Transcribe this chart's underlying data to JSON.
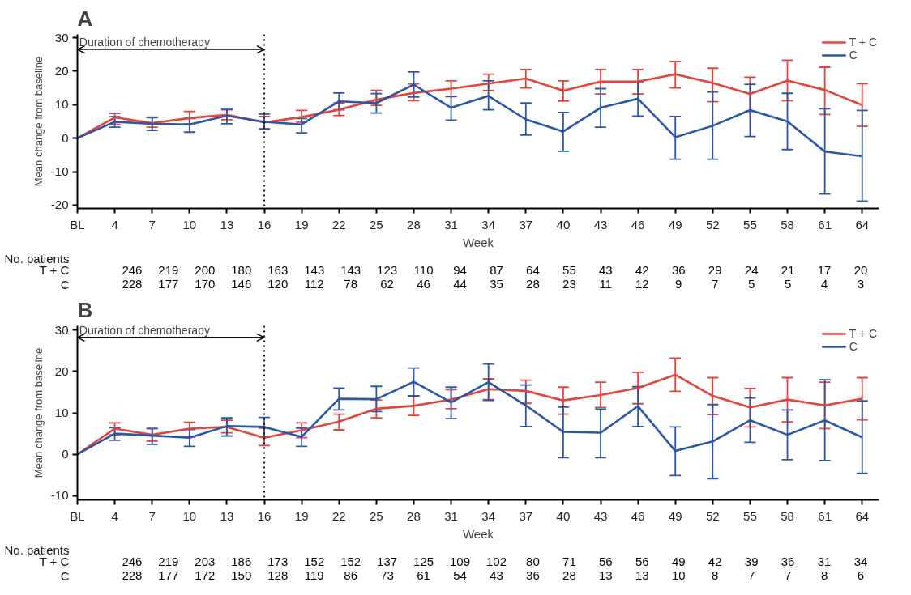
{
  "chart_data": [
    {
      "type": "line",
      "title": "A",
      "xlabel": "Week",
      "ylabel": "Mean change from baseline",
      "categories": [
        "BL",
        "4",
        "7",
        "10",
        "13",
        "16",
        "19",
        "22",
        "25",
        "28",
        "31",
        "34",
        "37",
        "40",
        "43",
        "46",
        "49",
        "52",
        "55",
        "58",
        "61",
        "64"
      ],
      "series": [
        {
          "name": "T + C",
          "color": "#e5423a",
          "values": [
            0,
            6.2,
            4.5,
            6,
            7,
            4.7,
            6.3,
            8.5,
            11.5,
            13.5,
            14.8,
            16.3,
            17.8,
            14.2,
            16.9,
            16.9,
            19.1,
            16.5,
            13.2,
            17.2,
            14.4,
            9.9
          ],
          "errors": [
            null,
            [
              4.1,
              7.4
            ],
            [
              3.3,
              6.3
            ],
            [
              4.3,
              8
            ],
            [
              5.5,
              8.5
            ],
            [
              2.8,
              6.5
            ],
            [
              4.8,
              8.3
            ],
            [
              6.8,
              10.5
            ],
            [
              9.8,
              14.3
            ],
            [
              11.2,
              16.2
            ],
            [
              12.5,
              17.1
            ],
            [
              14.2,
              19.1
            ],
            [
              15,
              20.5
            ],
            [
              11.1,
              17.1
            ],
            [
              13.2,
              20.5
            ],
            [
              13.2,
              20.5
            ],
            [
              15,
              22.9
            ],
            [
              10.9,
              20.9
            ],
            [
              8,
              18.2
            ],
            [
              11.2,
              23.3
            ],
            [
              7.1,
              21.2
            ],
            [
              3.5,
              16.3
            ]
          ]
        },
        {
          "name": "C",
          "color": "#2a58a8",
          "values": [
            0,
            4.9,
            4.3,
            4.1,
            6.7,
            4.9,
            4.1,
            11,
            10.5,
            16,
            9.1,
            12.6,
            5.6,
            2,
            9.1,
            11.8,
            0.3,
            3.7,
            8.4,
            5,
            -4,
            -5.4
          ],
          "errors": [
            null,
            [
              3.3,
              6.4
            ],
            [
              2.3,
              6.1
            ],
            [
              1.8,
              5.9
            ],
            [
              4.3,
              8.6
            ],
            [
              2.7,
              7.2
            ],
            [
              1.6,
              5.9
            ],
            [
              8.5,
              13.5
            ],
            [
              7.5,
              13.3
            ],
            [
              12.3,
              19.8
            ],
            [
              5.4,
              12.4
            ],
            [
              8.5,
              17.1
            ],
            [
              0.9,
              10.5
            ],
            [
              -3.9,
              7.7
            ],
            [
              3.3,
              14.8
            ],
            [
              6.6,
              16.9
            ],
            [
              -6.3,
              6.5
            ],
            [
              -6.3,
              13.8
            ],
            [
              0.5,
              16.1
            ],
            [
              -3.4,
              13.4
            ],
            [
              -16.7,
              8.8
            ],
            [
              -18.8,
              8.3
            ]
          ]
        }
      ],
      "ylim": [
        -21,
        31
      ],
      "yticks": [
        -20,
        -10,
        0,
        10,
        20,
        30
      ],
      "legend": "top right",
      "ref_lines": [
        {
          "axis": "x",
          "value": "16",
          "line_style": "dotted"
        }
      ],
      "annotations": [
        {
          "text": "Duration of chemotherapy",
          "x": "16",
          "y": 26.5
        },
        "No. patients",
        "T + C",
        "246 219 200 180 163 143 143 123 110 94 87 64 55 43 42 36 29 24 21 17 20",
        "C",
        "228 177 170 146 120 112 78 62 46 44 35 28 23 11 12 9 7 5 5 4 3"
      ]
    },
    {
      "type": "line",
      "title": "B",
      "xlabel": "Week",
      "ylabel": "Mean change from baseline",
      "categories": [
        "BL",
        "4",
        "7",
        "10",
        "13",
        "16",
        "19",
        "22",
        "25",
        "28",
        "31",
        "34",
        "37",
        "40",
        "43",
        "46",
        "49",
        "52",
        "55",
        "58",
        "61",
        "64"
      ],
      "series": [
        {
          "name": "T + C",
          "color": "#e5423a",
          "values": [
            0,
            6.2,
            4.7,
            6.2,
            6.6,
            4,
            5.8,
            7.9,
            11,
            11.7,
            13.2,
            15.7,
            15.3,
            13,
            14.3,
            16,
            19.2,
            14.1,
            11.3,
            13.2,
            11.8,
            13.4
          ],
          "errors": [
            null,
            [
              4.7,
              7.6
            ],
            [
              3.2,
              6.2
            ],
            [
              4.2,
              7.7
            ],
            [
              5.2,
              8.2
            ],
            [
              2.1,
              6.3
            ],
            [
              4,
              7.6
            ],
            [
              5.9,
              9.7
            ],
            [
              8.8,
              13.1
            ],
            [
              9.4,
              14.1
            ],
            [
              11,
              15.6
            ],
            [
              13.2,
              18.2
            ],
            [
              12.3,
              17.9
            ],
            [
              9.7,
              16.2
            ],
            [
              11.3,
              17.4
            ],
            [
              12.2,
              19.8
            ],
            [
              15.2,
              23.2
            ],
            [
              9.6,
              18.5
            ],
            [
              6.6,
              15.9
            ],
            [
              7.8,
              18.5
            ],
            [
              6.2,
              17.4
            ],
            [
              8.3,
              18.5
            ]
          ]
        },
        {
          "name": "C",
          "color": "#2a58a8",
          "values": [
            0,
            5,
            4.5,
            4,
            6.8,
            6.6,
            4.2,
            13.4,
            13.3,
            17.5,
            12.5,
            17.4,
            11.8,
            5.4,
            5.2,
            11.6,
            0.8,
            3.1,
            8.2,
            4.7,
            8.2,
            4.1
          ],
          "errors": [
            null,
            [
              3.4,
              6.4
            ],
            [
              2.4,
              6.2
            ],
            [
              1.9,
              6
            ],
            [
              4.4,
              8.8
            ],
            [
              4.2,
              8.9
            ],
            [
              1.9,
              6.3
            ],
            [
              10.7,
              16
            ],
            [
              10.3,
              16.4
            ],
            [
              14.1,
              20.8
            ],
            [
              8.6,
              16.2
            ],
            [
              13,
              21.8
            ],
            [
              6.7,
              16.7
            ],
            [
              -0.8,
              11.4
            ],
            [
              -0.8,
              10.9
            ],
            [
              6.7,
              16.3
            ],
            [
              -5.1,
              6.6
            ],
            [
              -5.9,
              12
            ],
            [
              2.9,
              13.6
            ],
            [
              -1.3,
              10.7
            ],
            [
              -1.5,
              18
            ],
            [
              -4.6,
              12.9
            ]
          ]
        }
      ],
      "ylim": [
        -11,
        31
      ],
      "yticks": [
        -10,
        0,
        10,
        20,
        30
      ],
      "legend": "top right",
      "ref_lines": [
        {
          "axis": "x",
          "value": "16",
          "line_style": "dotted"
        }
      ],
      "annotations": [
        {
          "text": "Duration of chemotherapy",
          "x": "16",
          "y": 28.2
        },
        "No. patients",
        "T + C",
        "246 219 203 186 173 152 152 137 125 109 102 80 71 56 56 49 42 39 36 31 34",
        "C",
        "228 177 172 150 128 119 86 73 61 54 43 36 28 13 13 10 8 7 7 8 6"
      ]
    }
  ]
}
